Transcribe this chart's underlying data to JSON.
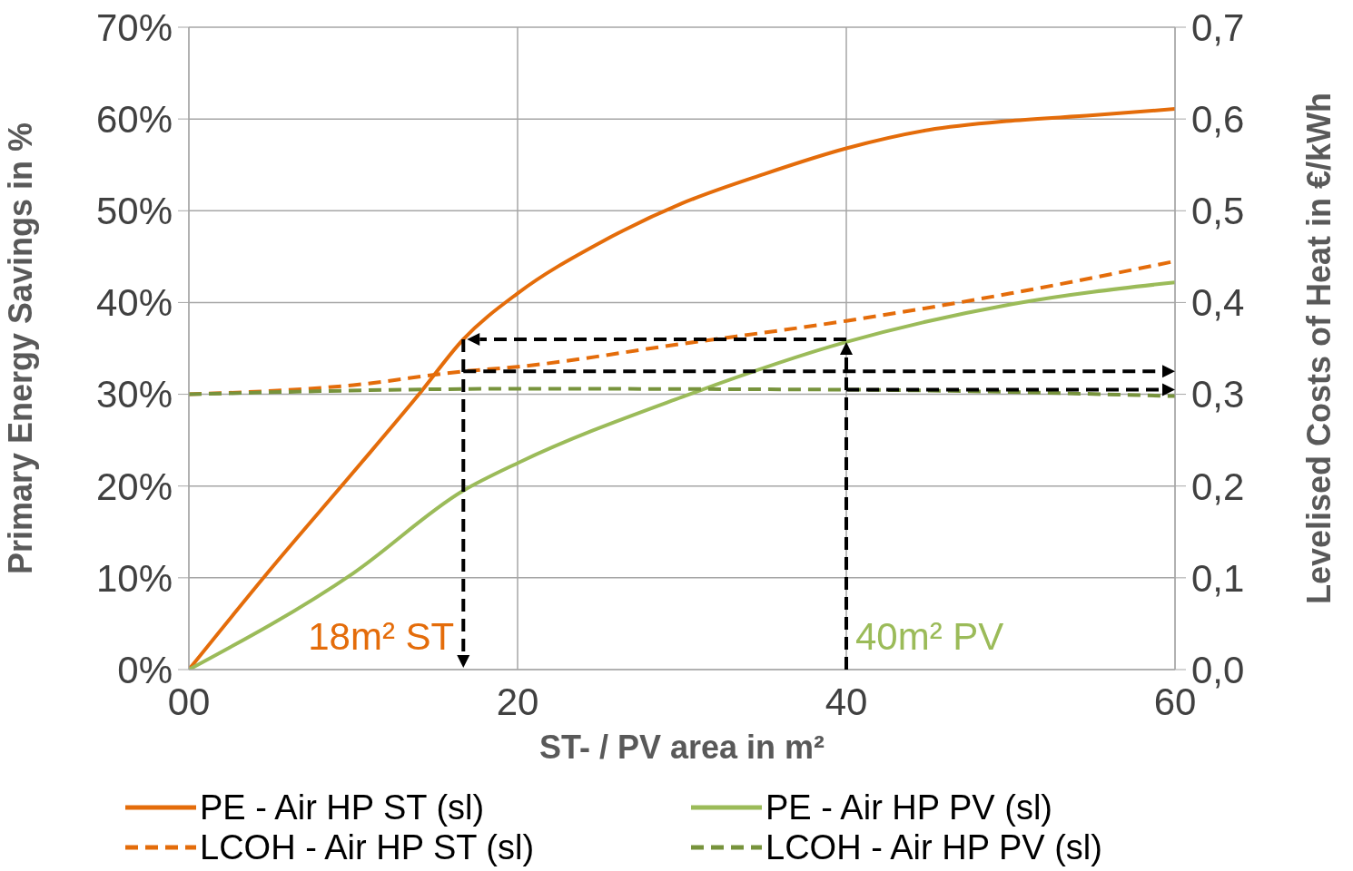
{
  "chart_data": {
    "type": "line",
    "xlabel": "ST- / PV  area in m²",
    "ylabel": "Primary Energy Savings in %",
    "y2label": "Levelised Costs of Heat in €/kWh",
    "xlim": [
      0,
      60
    ],
    "xticks": [
      {
        "value": 0,
        "label": "00"
      },
      20,
      40,
      60
    ],
    "ylim": [
      0,
      70
    ],
    "yticks": [
      {
        "value": 0,
        "label": "0%"
      },
      {
        "value": 10,
        "label": "10%"
      },
      {
        "value": 20,
        "label": "20%"
      },
      {
        "value": 30,
        "label": "30%"
      },
      {
        "value": 40,
        "label": "40%"
      },
      {
        "value": 50,
        "label": "50%"
      },
      {
        "value": 60,
        "label": "60%"
      },
      {
        "value": 70,
        "label": "70%"
      }
    ],
    "y2lim": [
      0,
      0.7
    ],
    "y2ticks": [
      {
        "value": 0,
        "label": "0,0"
      },
      {
        "value": 0.1,
        "label": "0,1"
      },
      {
        "value": 0.2,
        "label": "0,2"
      },
      {
        "value": 0.3,
        "label": "0,3"
      },
      {
        "value": 0.4,
        "label": "0,4"
      },
      {
        "value": 0.5,
        "label": "0,5"
      },
      {
        "value": 0.6,
        "label": "0,6"
      },
      {
        "value": 0.7,
        "label": "0,7"
      }
    ],
    "grid": true,
    "legend": "bottom",
    "marker": "none",
    "series": [
      {
        "name": "PE - Air HP ST (sl)",
        "color": "#e46c0a",
        "line_style": "solid",
        "x": [
          0,
          5,
          10,
          14,
          16.7,
          20,
          25,
          30,
          35,
          40,
          45,
          50,
          55,
          60
        ],
        "values": [
          0,
          11,
          21.5,
          30,
          36,
          41,
          46.5,
          50.8,
          54,
          56.8,
          58.8,
          59.8,
          60.4,
          61.1
        ]
      },
      {
        "name": "LCOH - Air HP ST (sl)",
        "color": "#e46c0a",
        "line_style": "dashed",
        "axis": "y2",
        "x": [
          0,
          10,
          16.7,
          20,
          30,
          40,
          50,
          60
        ],
        "values": [
          0.3,
          0.31,
          0.325,
          0.33,
          0.355,
          0.38,
          0.41,
          0.445
        ]
      },
      {
        "name": "PE - Air HP PV (sl)",
        "color": "#9bbb59",
        "line_style": "solid",
        "x": [
          0,
          10,
          16.7,
          20,
          30,
          40,
          50,
          60
        ],
        "values": [
          0,
          10.5,
          19.5,
          22.5,
          29.7,
          35.7,
          39.8,
          42.2
        ]
      },
      {
        "name": "LCOH - Air HP PV (sl)",
        "color": "#77933c",
        "line_style": "dashed",
        "axis": "y2",
        "x": [
          0,
          20,
          40,
          60
        ],
        "values": [
          0.3,
          0.306,
          0.305,
          0.298
        ]
      }
    ],
    "ref_lines": [
      {
        "axis": "x",
        "value": 16.7,
        "color": "#000000",
        "line_style": "dashed"
      },
      {
        "axis": "x",
        "value": 40,
        "color": "#000000",
        "line_style": "dashed"
      }
    ],
    "annotations": [
      "18m² ST",
      "40m² PV"
    ]
  }
}
